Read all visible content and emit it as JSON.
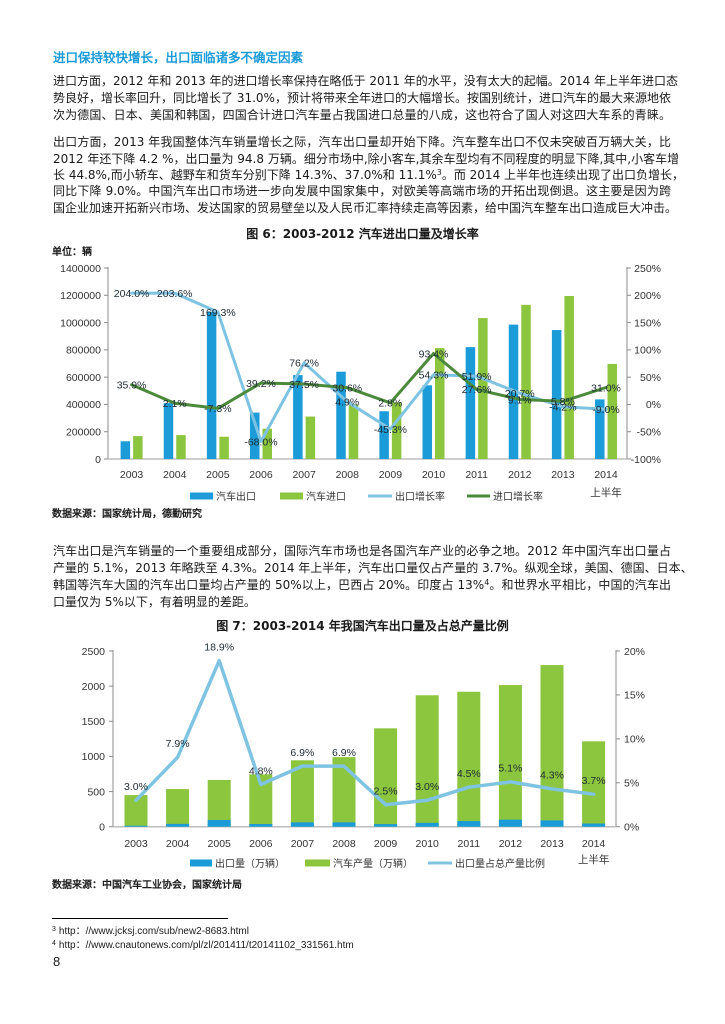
{
  "article": {
    "heading": "进口保持较快增长，出口面临诸多不确定因素",
    "para1": [
      "进口方面，2012 年和 2013 年的进口增长率保持在略低于 2011 年的水平，没有太大的起幅。2014 年上半年进口态",
      "势良好，增长率回升，同比增长了 31.0%，预计将带来全年进口的大幅增长。按国别统计，进口汽车的最大来源地依",
      "次为德国、日本、美国和韩国，四国合计进口汽车量占我国进口总量的八成，这也符合了国人对这四大车系的青睐。"
    ],
    "para2": [
      "出口方面，2013 年我国整体汽车销量增长之际，汽车出口量却开始下降。汽车整车出口不仅未突破百万辆大关，比",
      "2012 年还下降  4.2 %，出口量为 94.8 万辆。细分市场中,除小客车,其余车型均有不同程度的明显下降,其中,小客车增",
      {
        "before": "长 44.8%,而小轿车、越野车和货车分别下降 14.3%、37.0%和 11.1%",
        "sup": "3",
        "after": "。而 2014 上半年也连续出现了出口负增长，"
      },
      "同比下降 9.0%。中国汽车出口市场进一步向发展中国家集中，对欧美等高端市场的开拓出现倒退。这主要是因为跨",
      "国企业加速开拓新兴市场、发达国家的贸易壁垒以及人民币汇率持续走高等因素，给中国汽车整车出口造成巨大冲击。"
    ],
    "para3": [
      "汽车出口是汽车销量的一个重要组成部分，国际汽车市场也是各国汽车产业的必争之地。2012 年中国汽车出口量占",
      "产量的 5.1%，2013 年略跌至 4.3%。2014 年上半年，汽车出口量仅占产量的 3.7%。纵观全球，美国、德国、日本、",
      {
        "before": "韩国等汽车大国的汽车出口量均占产量的 50%以上，巴西占 20%。印度占 13%",
        "sup": "4",
        "after": "。和世界水平相比，中国的汽车出"
      },
      "口量仅为 5%以下，有着明显的差距。"
    ]
  },
  "figures": {
    "fig6": {
      "title": "图 6：2003-2012 汽车进出口量及增长率",
      "unit_label": "单位：辆",
      "source": "数据来源：国家统计局，德勤研究"
    },
    "fig7": {
      "title": "图 7：2003-2014 年我国汽车出口量及占总产量比例",
      "source": "数据来源：中国汽车工业协会，国家统计局"
    }
  },
  "footnotes": [
    {
      "num": "3",
      "text": "http：//www.jcksj.com/sub/new2-8683.html"
    },
    {
      "num": "4",
      "text": "http：//www.cnautonews.com/pl/zl/201411/t20141102_331561.htm"
    }
  ],
  "page_number": "8",
  "colors": {
    "heading": "#1B9BD7",
    "bar_blue": "#1B9BD7",
    "bar_green": "#8CC63F",
    "line_light_blue": "#7EC4E2",
    "line_dark_green": "#4C8A3B"
  },
  "chart_data": [
    {
      "id": "fig6",
      "type": "bar+line",
      "title": "图 6：2003-2012 汽车进出口量及增长率",
      "ylabel": "单位：辆",
      "categories": [
        "2003",
        "2004",
        "2005",
        "2006",
        "2007",
        "2008",
        "2009",
        "2010",
        "2011",
        "2012",
        "2013",
        "2014上半年"
      ],
      "category_labels": [
        [
          "2003"
        ],
        [
          "2004"
        ],
        [
          "2005"
        ],
        [
          "2006"
        ],
        [
          "2007"
        ],
        [
          "2008"
        ],
        [
          "2009"
        ],
        [
          "2010"
        ],
        [
          "2011"
        ],
        [
          "2012"
        ],
        [
          "2013"
        ],
        [
          "2014",
          "上半年"
        ]
      ],
      "y_left": {
        "min": 0,
        "max": 1400000,
        "ticks": [
          "0",
          "200000",
          "400000",
          "600000",
          "800000",
          "1000000",
          "1200000",
          "1400000"
        ]
      },
      "y_right": {
        "min": -100,
        "max": 250,
        "ticks": [
          "-100%",
          "-50%",
          "0%",
          "50%",
          "100%",
          "150%",
          "200%",
          "250%"
        ]
      },
      "grid": false,
      "legend_position": "bottom",
      "series": [
        {
          "name": "汽车出口",
          "type": "bar",
          "axis": "left",
          "color": "#1B9BD7",
          "values": [
            130000,
            410000,
            1080000,
            340000,
            615000,
            640000,
            350000,
            540000,
            820000,
            985000,
            945000,
            437000
          ]
        },
        {
          "name": "汽车进口",
          "type": "bar",
          "axis": "left",
          "color": "#8CC63F",
          "values": [
            168000,
            175000,
            163000,
            222000,
            311000,
            400000,
            415000,
            813000,
            1033000,
            1130000,
            1195000,
            697000
          ]
        },
        {
          "name": "出口增长率",
          "type": "line",
          "axis": "right",
          "color": "#7EC4E2",
          "values": [
            204.0,
            203.6,
            169.3,
            -68.0,
            76.2,
            4.9,
            -45.3,
            54.3,
            51.9,
            20.7,
            -4.2,
            -9.0
          ],
          "labels": [
            "204.0%",
            "203.6%",
            "169.3%",
            "-68.0%",
            "76.2%",
            "4.9%",
            "-45.3%",
            "54.3%",
            "51.9%",
            "20.7%",
            "-4.2%",
            "-9.0%"
          ]
        },
        {
          "name": "进口增长率",
          "type": "line",
          "axis": "right",
          "color": "#4C8A3B",
          "values": [
            35.9,
            2.1,
            -7.3,
            39.2,
            37.5,
            30.6,
            2.8,
            93.4,
            27.6,
            9.1,
            5.8,
            31.0
          ],
          "labels": [
            "35.9%",
            "2.1%",
            "-7.3%",
            "39.2%",
            "37.5%",
            "30.6%",
            "2.8%",
            "93.4%",
            "27.6%",
            "9.1%",
            "5.8%",
            "31.0%"
          ]
        }
      ]
    },
    {
      "id": "fig7",
      "type": "bar+line",
      "title": "图 7：2003-2014 年我国汽车出口量及占总产量比例",
      "categories": [
        "2003",
        "2004",
        "2005",
        "2006",
        "2007",
        "2008",
        "2009",
        "2010",
        "2011",
        "2012",
        "2013",
        "2014上半年"
      ],
      "category_labels": [
        [
          "2003"
        ],
        [
          "2004"
        ],
        [
          "2005"
        ],
        [
          "2006"
        ],
        [
          "2007"
        ],
        [
          "2008"
        ],
        [
          "2009"
        ],
        [
          "2010"
        ],
        [
          "2011"
        ],
        [
          "2012"
        ],
        [
          "2013"
        ],
        [
          "2014",
          "上半年"
        ]
      ],
      "y_left": {
        "min": 0,
        "max": 2500,
        "ticks": [
          "0",
          "500",
          "1000",
          "1500",
          "2000",
          "2500"
        ]
      },
      "y_right": {
        "min": 0,
        "max": 20,
        "ticks": [
          "0%",
          "5%",
          "10%",
          "15%",
          "20%"
        ]
      },
      "grid": false,
      "legend_position": "bottom",
      "series": [
        {
          "name": "出口量（万辆）",
          "type": "bar",
          "axis": "left",
          "color": "#1B9BD7",
          "values": [
            14,
            40,
            95,
            38,
            62,
            62,
            37,
            55,
            80,
            100,
            90,
            45
          ]
        },
        {
          "name": "汽车产量（万辆）",
          "type": "bar",
          "axis": "left",
          "color": "#8CC63F",
          "values": [
            450,
            535,
            665,
            745,
            945,
            990,
            1400,
            1870,
            1920,
            2015,
            2300,
            1215
          ]
        },
        {
          "name": "出口量占总产量比例",
          "type": "line",
          "axis": "right",
          "color": "#7EC4E2",
          "values": [
            3.0,
            7.9,
            18.9,
            4.8,
            6.9,
            6.9,
            2.5,
            3.0,
            4.5,
            5.1,
            4.3,
            3.7
          ],
          "labels": [
            "3.0%",
            "7.9%",
            "18.9%",
            "4.8%",
            "6.9%",
            "6.9%",
            "2.5%",
            "3.0%",
            "4.5%",
            "5.1%",
            "4.3%",
            "3.7%"
          ]
        }
      ]
    }
  ]
}
